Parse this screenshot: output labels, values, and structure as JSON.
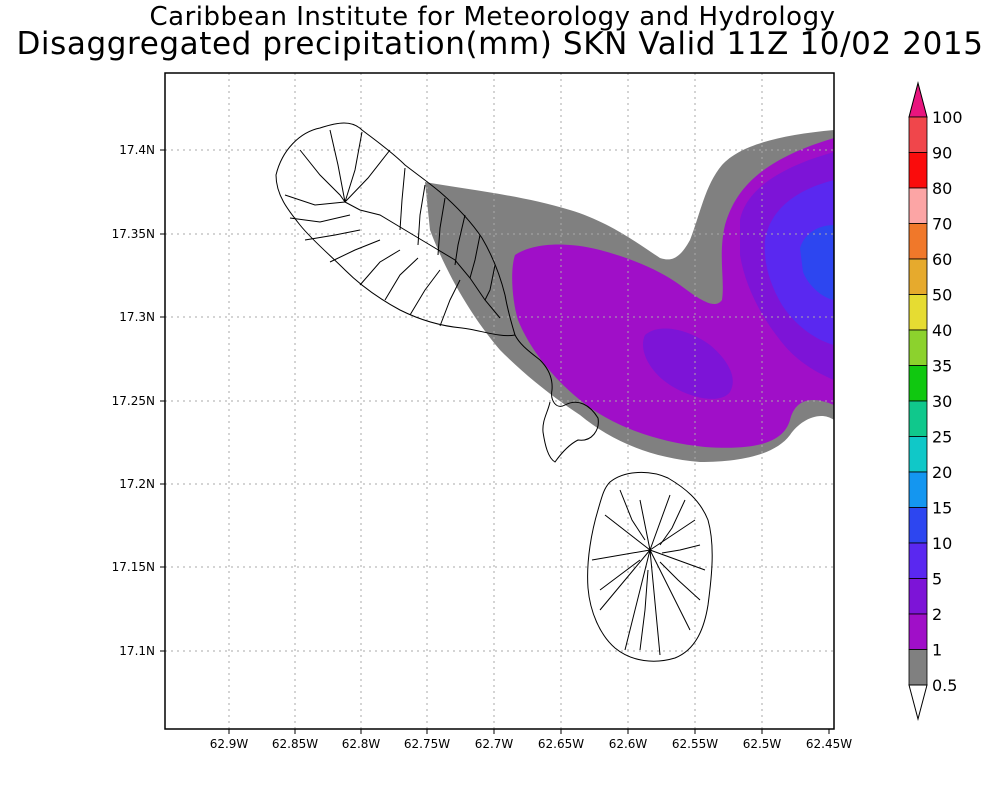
{
  "title": {
    "line1": "Caribbean Institute for Meteorology and Hydrology",
    "line2": "Disaggregated precipitation(mm) SKN Valid 11Z 10/02 2015"
  },
  "axes": {
    "x_ticks": [
      "62.9W",
      "62.85W",
      "62.8W",
      "62.75W",
      "62.7W",
      "62.65W",
      "62.6W",
      "62.55W",
      "62.5W",
      "62.45W"
    ],
    "y_ticks": [
      "17.4N",
      "17.35N",
      "17.3N",
      "17.25N",
      "17.2N",
      "17.15N",
      "17.1N"
    ],
    "grid": "dotted"
  },
  "colorbar": {
    "levels": [
      "100",
      "90",
      "80",
      "70",
      "60",
      "50",
      "40",
      "35",
      "30",
      "25",
      "20",
      "15",
      "10",
      "5",
      "2",
      "1",
      "0.5"
    ],
    "colors": [
      "#e8157e",
      "#f0464b",
      "#fa0c0c",
      "#fca5a5",
      "#f0782a",
      "#e6aa2d",
      "#e6dc32",
      "#8cd22d",
      "#10c810",
      "#10c88c",
      "#10c8c8",
      "#1496f0",
      "#2d46f0",
      "#5a28f0",
      "#7d14d7",
      "#a00fc8",
      "#808080"
    ]
  },
  "precip_colors": {
    "0.5-1": "#808080",
    "1-2": "#a00fc8",
    "2-5": "#7d14d7",
    "5-10": "#5a28f0",
    "10-15": "#2d46f0"
  }
}
